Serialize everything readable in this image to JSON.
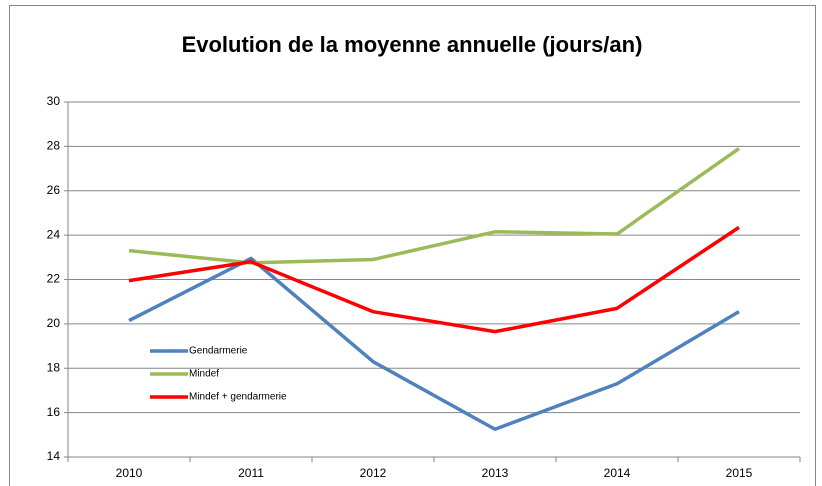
{
  "chart_data": {
    "type": "line",
    "title": "Evolution de la moyenne annuelle (jours/an)",
    "categories": [
      "2010",
      "2011",
      "2012",
      "2013",
      "2014",
      "2015"
    ],
    "series": [
      {
        "name": "Gendarmerie",
        "color": "#4f81bd",
        "values": [
          20.15,
          22.95,
          18.3,
          15.25,
          17.3,
          20.55
        ]
      },
      {
        "name": "Mindef",
        "color": "#9bbb59",
        "values": [
          23.3,
          22.75,
          22.9,
          24.15,
          24.05,
          27.9
        ]
      },
      {
        "name": "Mindef + gendarmerie",
        "color": "#ff0000",
        "values": [
          21.95,
          22.8,
          20.55,
          19.65,
          20.7,
          24.35
        ]
      }
    ],
    "ylim": [
      14,
      30
    ],
    "yticks": [
      14,
      16,
      18,
      20,
      22,
      24,
      26,
      28,
      30
    ],
    "grid": true,
    "legend": "left"
  }
}
